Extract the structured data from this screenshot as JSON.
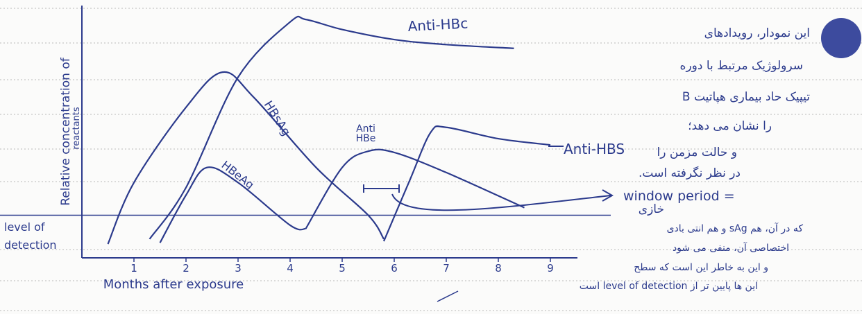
{
  "chart_data": {
    "type": "line",
    "y_label": [
      "Relative concentration of",
      "reactants"
    ],
    "x_label": "Months after exposure",
    "xlim": [
      0,
      9.5
    ],
    "xticks": [
      1,
      2,
      3,
      4,
      5,
      6,
      7,
      8,
      9
    ],
    "ylim": [
      0,
      10
    ],
    "detection": {
      "label": [
        "level of",
        "detection"
      ],
      "value": 1.7
    },
    "series": [
      {
        "name": "HBsAg",
        "color": "#2b3a8c",
        "x": [
          0.5,
          1,
          2,
          2.7,
          3.3,
          4.5,
          5.5,
          5.8
        ],
        "values": [
          0.55,
          3.0,
          6.0,
          7.4,
          6.4,
          3.6,
          1.7,
          0.75
        ]
      },
      {
        "name": "Anti-HBc",
        "color": "#2b3a8c",
        "x": [
          1.3,
          2,
          3,
          4,
          4.3,
          5,
          6,
          7,
          8.3
        ],
        "values": [
          0.75,
          2.8,
          7.2,
          9.4,
          9.5,
          9.1,
          8.7,
          8.5,
          8.35
        ]
      },
      {
        "name": "HBeAg",
        "color": "#2b3a8c",
        "x": [
          1.5,
          2,
          2.4,
          3,
          4,
          4.3
        ],
        "values": [
          0.6,
          2.5,
          3.6,
          3.0,
          1.3,
          1.16
        ]
      },
      {
        "name": "Anti HBe",
        "color": "#2b3a8c",
        "x": [
          4.3,
          5,
          5.5,
          6,
          7,
          8.5
        ],
        "values": [
          1.16,
          3.6,
          4.25,
          4.2,
          3.4,
          2.0
        ]
      },
      {
        "name": "Anti-HBS",
        "color": "#2b3a8c",
        "x": [
          5.8,
          6.3,
          6.7,
          7,
          8,
          9
        ],
        "values": [
          0.66,
          3.1,
          5.0,
          5.2,
          4.75,
          4.5
        ]
      }
    ],
    "window_label": "window period =",
    "notes": [
      "این نمودار، رویدادهای",
      "سرولوژیک مرتبط با دوره",
      "تیپیک حاد بیماری هپاتیت B",
      "را نشان می دهد؛",
      "و حالت مزمن را",
      "در نظر نگرفته است.",
      "خازی",
      "که در آن، هم sAg و هم انتی بادی",
      "اختصاصی آن، منفی می شود",
      "و این به خاطر این است که سطح",
      "این ها پایین تر از level of detection است"
    ]
  }
}
